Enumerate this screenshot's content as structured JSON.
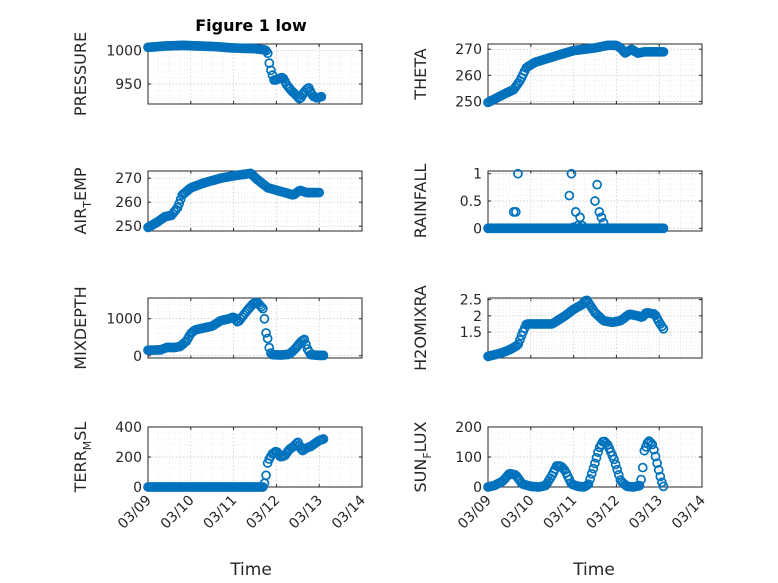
{
  "figure": {
    "title": "Figure 1 low",
    "xlabel": "Time",
    "date_ticks": [
      "03/09",
      "03/10",
      "03/11",
      "03/12",
      "03/13",
      "03/14"
    ],
    "marker_color": "#0072BD"
  },
  "chart_data": [
    {
      "type": "scatter",
      "name": "PRESSURE",
      "ylabel": "PRESSURE",
      "xlim": [
        0,
        5
      ],
      "ylim": [
        920,
        1010
      ],
      "yticks": [
        950,
        1000
      ],
      "knots": [
        [
          0,
          1005
        ],
        [
          0.2,
          1006
        ],
        [
          0.4,
          1007
        ],
        [
          0.8,
          1008
        ],
        [
          1.2,
          1007
        ],
        [
          1.6,
          1006
        ],
        [
          2.0,
          1004
        ],
        [
          2.5,
          1003
        ],
        [
          2.75,
          1001
        ],
        [
          2.8,
          996
        ],
        [
          2.85,
          975
        ],
        [
          2.95,
          955
        ],
        [
          3.05,
          958
        ],
        [
          3.15,
          960
        ],
        [
          3.25,
          948
        ],
        [
          3.35,
          940
        ],
        [
          3.45,
          934
        ],
        [
          3.55,
          927
        ],
        [
          3.65,
          938
        ],
        [
          3.75,
          945
        ],
        [
          3.85,
          932
        ],
        [
          3.95,
          929
        ],
        [
          4.05,
          931
        ]
      ]
    },
    {
      "type": "scatter",
      "name": "THETA",
      "ylabel": "THETA",
      "xlim": [
        0,
        5
      ],
      "ylim": [
        249,
        272
      ],
      "yticks": [
        250,
        260,
        270
      ],
      "knots": [
        [
          0,
          249.6
        ],
        [
          0.4,
          253
        ],
        [
          0.6,
          254.5
        ],
        [
          0.75,
          258
        ],
        [
          0.9,
          263
        ],
        [
          1.1,
          265
        ],
        [
          1.5,
          267
        ],
        [
          2.0,
          269.5
        ],
        [
          2.5,
          270.5
        ],
        [
          2.8,
          271.5
        ],
        [
          3.0,
          271.5
        ],
        [
          3.1,
          270.5
        ],
        [
          3.2,
          268.5
        ],
        [
          3.35,
          270
        ],
        [
          3.5,
          268.5
        ],
        [
          3.65,
          269
        ],
        [
          3.8,
          269
        ],
        [
          4.0,
          269
        ],
        [
          4.1,
          269
        ]
      ]
    },
    {
      "type": "scatter",
      "name": "AIR_TEMP",
      "ylabel": "AIR_TEMP",
      "xlim": [
        0,
        5
      ],
      "ylim": [
        248,
        273
      ],
      "yticks": [
        250,
        260,
        270
      ],
      "knots": [
        [
          0,
          249.5
        ],
        [
          0.2,
          251.5
        ],
        [
          0.4,
          254
        ],
        [
          0.55,
          254.5
        ],
        [
          0.7,
          258
        ],
        [
          0.8,
          263
        ],
        [
          1.0,
          266
        ],
        [
          1.3,
          268
        ],
        [
          1.7,
          270
        ],
        [
          2.0,
          271
        ],
        [
          2.2,
          271.5
        ],
        [
          2.4,
          272
        ],
        [
          2.55,
          269.5
        ],
        [
          2.8,
          266
        ],
        [
          3.0,
          265
        ],
        [
          3.2,
          264
        ],
        [
          3.4,
          263
        ],
        [
          3.55,
          265
        ],
        [
          3.7,
          264
        ],
        [
          3.85,
          264
        ],
        [
          4.0,
          264
        ]
      ]
    },
    {
      "type": "scatter",
      "name": "RAINFALL",
      "ylabel": "RAINFALL",
      "xlim": [
        0,
        5
      ],
      "ylim": [
        -0.05,
        1.05
      ],
      "yticks": [
        0,
        0.5,
        1
      ],
      "knots": [
        [
          0,
          0
        ],
        [
          4.1,
          0
        ]
      ],
      "spikes": [
        [
          0.6,
          0.3
        ],
        [
          0.65,
          0.3
        ],
        [
          0.7,
          1.0
        ],
        [
          1.95,
          1.0
        ],
        [
          1.9,
          0.6
        ],
        [
          2.05,
          0.3
        ],
        [
          2.15,
          0.2
        ],
        [
          2.1,
          0.05
        ],
        [
          2.0,
          0.02
        ],
        [
          2.2,
          0.05
        ],
        [
          2.55,
          0.8
        ],
        [
          2.5,
          0.5
        ],
        [
          2.6,
          0.3
        ],
        [
          2.65,
          0.2
        ],
        [
          2.7,
          0.1
        ]
      ]
    },
    {
      "type": "scatter",
      "name": "MIXDEPTH",
      "ylabel": "MIXDEPTH",
      "xlim": [
        0,
        5
      ],
      "ylim": [
        -60,
        1560
      ],
      "yticks": [
        0,
        1000
      ],
      "knots": [
        [
          0,
          150
        ],
        [
          0.3,
          160
        ],
        [
          0.45,
          230
        ],
        [
          0.6,
          220
        ],
        [
          0.75,
          250
        ],
        [
          0.9,
          400
        ],
        [
          1.0,
          600
        ],
        [
          1.1,
          700
        ],
        [
          1.3,
          750
        ],
        [
          1.5,
          800
        ],
        [
          1.7,
          950
        ],
        [
          1.9,
          1000
        ],
        [
          2.0,
          1050
        ],
        [
          2.1,
          900
        ],
        [
          2.3,
          1200
        ],
        [
          2.45,
          1400
        ],
        [
          2.55,
          1450
        ],
        [
          2.7,
          1250
        ],
        [
          2.75,
          650
        ],
        [
          2.8,
          450
        ],
        [
          2.85,
          100
        ],
        [
          2.9,
          30
        ],
        [
          3.1,
          20
        ],
        [
          3.3,
          40
        ],
        [
          3.45,
          200
        ],
        [
          3.55,
          350
        ],
        [
          3.65,
          450
        ],
        [
          3.72,
          200
        ],
        [
          3.8,
          30
        ],
        [
          4.0,
          10
        ],
        [
          4.1,
          10
        ]
      ]
    },
    {
      "type": "scatter",
      "name": "H2OMIXRA",
      "ylabel": "H2OMIXRA",
      "xlim": [
        0,
        5
      ],
      "ylim": [
        0.7,
        2.55
      ],
      "yticks": [
        1.5,
        2,
        2.5
      ],
      "knots": [
        [
          0,
          0.75
        ],
        [
          0.3,
          0.85
        ],
        [
          0.5,
          0.95
        ],
        [
          0.7,
          1.1
        ],
        [
          0.8,
          1.45
        ],
        [
          0.9,
          1.75
        ],
        [
          1.1,
          1.75
        ],
        [
          1.5,
          1.75
        ],
        [
          1.8,
          2.0
        ],
        [
          2.0,
          2.2
        ],
        [
          2.2,
          2.35
        ],
        [
          2.3,
          2.5
        ],
        [
          2.5,
          2.1
        ],
        [
          2.7,
          1.85
        ],
        [
          2.9,
          1.8
        ],
        [
          3.1,
          1.85
        ],
        [
          3.3,
          2.05
        ],
        [
          3.5,
          2.0
        ],
        [
          3.6,
          1.95
        ],
        [
          3.7,
          2.1
        ],
        [
          3.9,
          2.05
        ],
        [
          4.0,
          1.8
        ],
        [
          4.1,
          1.6
        ]
      ]
    },
    {
      "type": "scatter",
      "name": "TERR_MSL",
      "ylabel": "TERR_MSL",
      "xlim": [
        0,
        5
      ],
      "ylim": [
        0,
        400
      ],
      "yticks": [
        0,
        200,
        400
      ],
      "knots": [
        [
          0,
          0
        ],
        [
          2.7,
          0
        ],
        [
          2.75,
          60
        ],
        [
          2.8,
          170
        ],
        [
          2.9,
          220
        ],
        [
          3.0,
          240
        ],
        [
          3.1,
          200
        ],
        [
          3.2,
          210
        ],
        [
          3.3,
          250
        ],
        [
          3.4,
          270
        ],
        [
          3.5,
          300
        ],
        [
          3.6,
          240
        ],
        [
          3.7,
          260
        ],
        [
          3.8,
          270
        ],
        [
          3.9,
          290
        ],
        [
          4.0,
          310
        ],
        [
          4.1,
          320
        ]
      ]
    },
    {
      "type": "scatter",
      "name": "SUN_FLUX",
      "ylabel": "SUN_FLUX",
      "xlim": [
        0,
        5
      ],
      "ylim": [
        0,
        200
      ],
      "yticks": [
        0,
        100,
        200
      ],
      "knots": [
        [
          0,
          0
        ],
        [
          0.15,
          5
        ],
        [
          0.35,
          20
        ],
        [
          0.5,
          45
        ],
        [
          0.65,
          40
        ],
        [
          0.8,
          10
        ],
        [
          1.0,
          2
        ],
        [
          1.2,
          0
        ],
        [
          1.35,
          5
        ],
        [
          1.5,
          40
        ],
        [
          1.6,
          70
        ],
        [
          1.7,
          70
        ],
        [
          1.8,
          55
        ],
        [
          1.95,
          10
        ],
        [
          2.1,
          2
        ],
        [
          2.25,
          0
        ],
        [
          2.35,
          10
        ],
        [
          2.5,
          80
        ],
        [
          2.6,
          130
        ],
        [
          2.7,
          155
        ],
        [
          2.8,
          140
        ],
        [
          2.95,
          90
        ],
        [
          3.1,
          20
        ],
        [
          3.25,
          2
        ],
        [
          3.4,
          0
        ],
        [
          3.55,
          5
        ],
        [
          3.6,
          40
        ],
        [
          3.65,
          120
        ],
        [
          3.75,
          155
        ],
        [
          3.85,
          140
        ],
        [
          3.95,
          80
        ],
        [
          4.05,
          20
        ],
        [
          4.1,
          2
        ]
      ]
    }
  ]
}
